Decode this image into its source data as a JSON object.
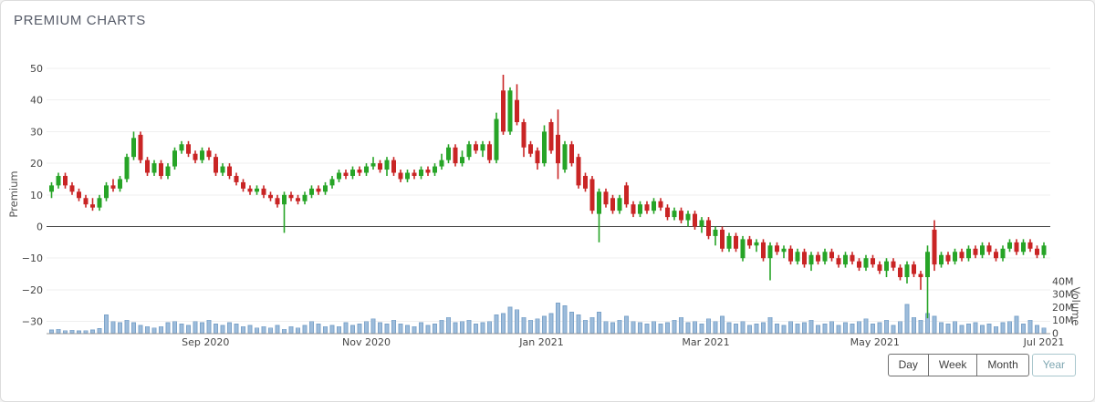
{
  "header": {
    "title": "PREMIUM CHARTS"
  },
  "controls": {
    "day": "Day",
    "week": "Week",
    "month": "Month",
    "year": "Year",
    "active": "Year"
  },
  "colors": {
    "up": "#27a427",
    "down": "#c92525",
    "volume_fill": "#9dbcdb",
    "volume_stroke": "#7ca3c9",
    "grid": "#efefef",
    "zero_line": "#4a4a4a",
    "baseline": "#9a9a9a",
    "axis_text": "#454545",
    "accent_active": "#7fa7b2"
  },
  "chart_data": {
    "type": "candlestick",
    "title": "PREMIUM CHARTS",
    "ylabel": "Premium",
    "y2label": "Volume",
    "ylim": [
      -35,
      52
    ],
    "grid": true,
    "y_ticks": [
      50,
      40,
      30,
      20,
      10,
      0,
      -10,
      -20,
      -30
    ],
    "x_ticks": [
      {
        "label": "Sep 2020",
        "i": 22.5
      },
      {
        "label": "Nov 2020",
        "i": 46
      },
      {
        "label": "Jan 2021",
        "i": 71.6
      },
      {
        "label": "Mar 2021",
        "i": 95.6
      },
      {
        "label": "May 2021",
        "i": 120.3
      },
      {
        "label": "Jul 2021",
        "i": 145
      }
    ],
    "volume_ticks": [
      {
        "label": "40M",
        "v": 40
      },
      {
        "label": "30M",
        "v": 30
      },
      {
        "label": "20M",
        "v": 20
      },
      {
        "label": "10M",
        "v": 10
      },
      {
        "label": "0",
        "v": 0
      }
    ],
    "candle_format": [
      "open",
      "high",
      "low",
      "close",
      "volume_millions"
    ],
    "candles": [
      [
        11,
        14,
        9,
        13,
        2.5
      ],
      [
        13,
        17,
        12,
        16,
        3
      ],
      [
        16,
        17,
        12,
        13,
        2
      ],
      [
        13,
        14,
        10,
        11,
        2.2
      ],
      [
        11,
        12,
        8,
        9,
        1.8
      ],
      [
        9,
        10,
        6,
        7,
        2
      ],
      [
        7,
        9,
        5,
        6,
        2.4
      ],
      [
        6,
        10,
        5,
        9,
        3.5
      ],
      [
        9,
        14,
        8,
        13,
        14
      ],
      [
        13,
        15,
        11,
        12,
        9
      ],
      [
        12,
        16,
        11,
        15,
        8
      ],
      [
        15,
        23,
        14,
        22,
        10
      ],
      [
        22,
        30,
        21,
        28,
        8
      ],
      [
        29,
        30,
        20,
        21,
        6
      ],
      [
        21,
        22,
        16,
        17,
        5
      ],
      [
        17,
        21,
        16,
        20,
        4
      ],
      [
        20,
        21,
        15,
        16,
        5
      ],
      [
        16,
        20,
        15,
        19,
        8
      ],
      [
        19,
        25,
        18,
        24,
        9
      ],
      [
        24,
        27,
        23,
        26,
        7
      ],
      [
        26,
        27,
        22,
        23,
        6
      ],
      [
        23,
        24,
        20,
        21,
        9
      ],
      [
        21,
        25,
        20,
        24,
        8
      ],
      [
        24,
        25,
        21,
        22,
        10
      ],
      [
        22,
        23,
        16,
        17,
        7
      ],
      [
        17,
        20,
        16,
        19,
        6
      ],
      [
        19,
        20,
        15,
        16,
        8
      ],
      [
        16,
        17,
        13,
        14,
        7
      ],
      [
        14,
        15,
        11,
        12,
        5
      ],
      [
        12,
        13,
        10,
        11,
        6
      ],
      [
        11,
        13,
        10,
        12,
        4
      ],
      [
        12,
        13,
        9,
        10,
        5
      ],
      [
        10,
        11,
        8,
        9,
        4
      ],
      [
        9,
        10,
        6,
        7,
        6
      ],
      [
        7,
        11,
        -2,
        10,
        3
      ],
      [
        10,
        11,
        8,
        9,
        5
      ],
      [
        9,
        10,
        7,
        8,
        4
      ],
      [
        8,
        11,
        7,
        10,
        6
      ],
      [
        10,
        13,
        9,
        12,
        9
      ],
      [
        12,
        13,
        10,
        11,
        7
      ],
      [
        11,
        14,
        10,
        13,
        5
      ],
      [
        13,
        16,
        12,
        15,
        6
      ],
      [
        15,
        18,
        14,
        17,
        5
      ],
      [
        17,
        18,
        15,
        16,
        8
      ],
      [
        16,
        19,
        15,
        18,
        6
      ],
      [
        18,
        19,
        16,
        17,
        7
      ],
      [
        17,
        20,
        16,
        19,
        9
      ],
      [
        19,
        22,
        18,
        20,
        11
      ],
      [
        20,
        21,
        17,
        18,
        8
      ],
      [
        18,
        22,
        16,
        21,
        7
      ],
      [
        21,
        22,
        16,
        17,
        10
      ],
      [
        17,
        18,
        14,
        15,
        7
      ],
      [
        15,
        18,
        14,
        17,
        6
      ],
      [
        17,
        18,
        15,
        16,
        5
      ],
      [
        16,
        19,
        15,
        18,
        8
      ],
      [
        18,
        19,
        16,
        17,
        6
      ],
      [
        17,
        20,
        16,
        19,
        7
      ],
      [
        19,
        23,
        18,
        21,
        10
      ],
      [
        21,
        26,
        20,
        25,
        12
      ],
      [
        25,
        26,
        19,
        20,
        8
      ],
      [
        20,
        24,
        19,
        22,
        9
      ],
      [
        22,
        27,
        21,
        26,
        10
      ],
      [
        26,
        27,
        23,
        24,
        7
      ],
      [
        24,
        27,
        22,
        26,
        8
      ],
      [
        26,
        27,
        20,
        21,
        9
      ],
      [
        21,
        36,
        20,
        34,
        14
      ],
      [
        43,
        48,
        29,
        30,
        15
      ],
      [
        30,
        44,
        29,
        43,
        20
      ],
      [
        40,
        45,
        32,
        33,
        18
      ],
      [
        33,
        34,
        22,
        25,
        12
      ],
      [
        26,
        27,
        22,
        23,
        10
      ],
      [
        24,
        25,
        18,
        20,
        11
      ],
      [
        20,
        32,
        19,
        30,
        13
      ],
      [
        33,
        34,
        23,
        24,
        15
      ],
      [
        29,
        37,
        15,
        20,
        23
      ],
      [
        18,
        27,
        17,
        26,
        21
      ],
      [
        26,
        27,
        19,
        20,
        16
      ],
      [
        22,
        23,
        12,
        13,
        14
      ],
      [
        16,
        17,
        11,
        12,
        10
      ],
      [
        15,
        16,
        4,
        5,
        12
      ],
      [
        4,
        12,
        -5,
        11,
        16
      ],
      [
        11,
        12,
        6,
        7,
        9
      ],
      [
        9,
        10,
        4,
        5,
        8
      ],
      [
        5,
        10,
        4,
        9,
        10
      ],
      [
        13,
        14,
        6,
        7,
        13
      ],
      [
        7,
        8,
        3,
        4,
        9
      ],
      [
        4,
        8,
        3,
        7,
        8
      ],
      [
        7,
        8,
        4,
        5,
        7
      ],
      [
        5,
        9,
        4,
        8,
        9
      ],
      [
        8,
        9,
        5,
        6,
        7
      ],
      [
        6,
        7,
        2,
        3,
        8
      ],
      [
        3,
        6,
        2,
        5,
        10
      ],
      [
        5,
        6,
        1,
        2,
        12
      ],
      [
        2,
        5,
        0,
        4,
        8
      ],
      [
        4,
        5,
        -1,
        0,
        9
      ],
      [
        0,
        3,
        -2,
        2,
        7
      ],
      [
        2,
        3,
        -4,
        -3,
        11
      ],
      [
        -3,
        0,
        -6,
        -1,
        9
      ],
      [
        -1,
        0,
        -8,
        -7,
        13
      ],
      [
        -7,
        -2,
        -8,
        -3,
        8
      ],
      [
        -3,
        -2,
        -8,
        -7,
        7
      ],
      [
        -10,
        -3,
        -11,
        -4,
        9
      ],
      [
        -4,
        -3,
        -7,
        -6,
        6
      ],
      [
        -6,
        -4,
        -8,
        -5,
        7
      ],
      [
        -5,
        -4,
        -11,
        -10,
        8
      ],
      [
        -10,
        -5,
        -17,
        -6,
        12
      ],
      [
        -6,
        -5,
        -9,
        -8,
        7
      ],
      [
        -8,
        -6,
        -10,
        -7,
        6
      ],
      [
        -7,
        -6,
        -12,
        -11,
        9
      ],
      [
        -11,
        -7,
        -12,
        -8,
        7
      ],
      [
        -8,
        -7,
        -13,
        -12,
        8
      ],
      [
        -12,
        -8,
        -14,
        -9,
        10
      ],
      [
        -9,
        -8,
        -12,
        -11,
        6
      ],
      [
        -11,
        -7,
        -12,
        -8,
        7
      ],
      [
        -8,
        -7,
        -11,
        -10,
        9
      ],
      [
        -10,
        -9,
        -13,
        -12,
        6
      ],
      [
        -12,
        -8,
        -13,
        -9,
        8
      ],
      [
        -9,
        -8,
        -12,
        -11,
        7
      ],
      [
        -11,
        -10,
        -14,
        -13,
        9
      ],
      [
        -13,
        -9,
        -14,
        -10,
        11
      ],
      [
        -10,
        -9,
        -13,
        -12,
        7
      ],
      [
        -12,
        -11,
        -15,
        -14,
        8
      ],
      [
        -14,
        -10,
        -16,
        -11,
        10
      ],
      [
        -11,
        -10,
        -14,
        -13,
        6
      ],
      [
        -13,
        -12,
        -17,
        -16,
        9
      ],
      [
        -16,
        -11,
        -18,
        -12,
        22
      ],
      [
        -12,
        -11,
        -16,
        -15,
        12
      ],
      [
        -15,
        -14,
        -20,
        -16,
        10
      ],
      [
        -16,
        -6,
        -29,
        -8,
        15
      ],
      [
        -1,
        2,
        -14,
        -12,
        13
      ],
      [
        -12,
        -8,
        -13,
        -9,
        8
      ],
      [
        -9,
        -8,
        -12,
        -11,
        7
      ],
      [
        -11,
        -7,
        -12,
        -8,
        9
      ],
      [
        -8,
        -7,
        -11,
        -10,
        6
      ],
      [
        -10,
        -6,
        -11,
        -7,
        7
      ],
      [
        -7,
        -6,
        -10,
        -9,
        8
      ],
      [
        -9,
        -5,
        -10,
        -6,
        6
      ],
      [
        -6,
        -5,
        -9,
        -8,
        7
      ],
      [
        -8,
        -7,
        -11,
        -10,
        5
      ],
      [
        -10,
        -6,
        -11,
        -7,
        8
      ],
      [
        -7,
        -4,
        -8,
        -5,
        9
      ],
      [
        -5,
        -4,
        -9,
        -8,
        13
      ],
      [
        -8,
        -4,
        -9,
        -5,
        7
      ],
      [
        -5,
        -4,
        -8,
        -7,
        10
      ],
      [
        -7,
        -6,
        -10,
        -9,
        6
      ],
      [
        -9,
        -5,
        -10,
        -6,
        4
      ]
    ]
  }
}
